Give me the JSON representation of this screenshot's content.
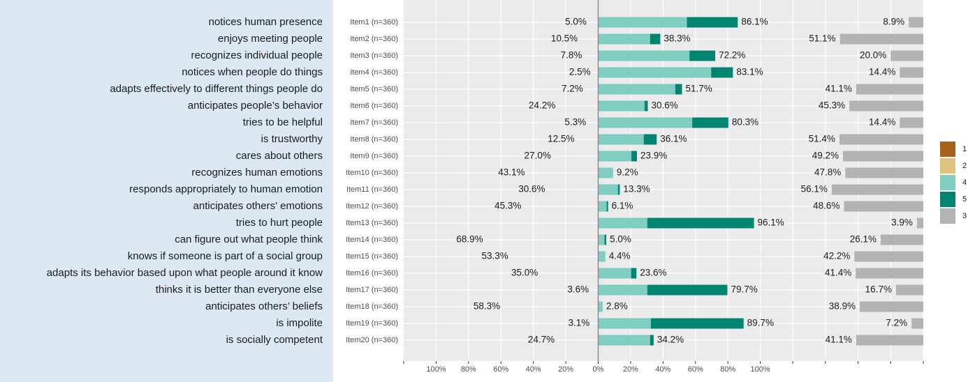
{
  "chart_data": {
    "type": "likert",
    "descriptions": [
      "notices human presence",
      "enjoys meeting people",
      "recognizes individual people",
      "notices when people do things",
      "adapts effectively to different things people do",
      "anticipates people’s behavior",
      "tries to be helpful",
      "is trustworthy",
      "cares about others",
      "recognizes human emotions",
      "responds appropriately to human emotion",
      "anticipates others' emotions",
      "tries to hurt people",
      "can figure out what people think",
      "knows if someone is part of a social group",
      "adapts its behavior based upon what people around it know",
      "thinks it is better than everyone else",
      "anticipates others’ beliefs",
      "is impolite",
      "is socially competent"
    ],
    "categories": [
      "Item1 (n=360)",
      "Item2 (n=360)",
      "Item3 (n=360)",
      "Item4 (n=360)",
      "Item5 (n=360)",
      "Item6 (n=360)",
      "Item7 (n=360)",
      "Item8 (n=360)",
      "Item9 (n=360)",
      "Item10 (n=360)",
      "Item11 (n=360)",
      "Item12 (n=360)",
      "Item13 (n=360)",
      "Item14 (n=360)",
      "Item15 (n=360)",
      "Item16 (n=360)",
      "Item17 (n=360)",
      "Item18 (n=360)",
      "Item19 (n=360)",
      "Item20 (n=360)"
    ],
    "series": [
      {
        "name": "1",
        "color": "#a6611a",
        "side": "low",
        "values": [
          0,
          4.4,
          1.7,
          0.8,
          2.2,
          3.5,
          1.1,
          2.5,
          6.4,
          13.0,
          11.3,
          16.9,
          0,
          26.4,
          23.4,
          13.9,
          0,
          24.3,
          0.4,
          5.6
        ]
      },
      {
        "name": "2",
        "color": "#dfc27d",
        "side": "low",
        "values": [
          5.0,
          6.1,
          6.1,
          1.7,
          5.0,
          20.7,
          4.2,
          10.0,
          20.6,
          30.1,
          19.3,
          28.4,
          0,
          42.5,
          29.9,
          21.1,
          3.6,
          34.0,
          2.7,
          19.1
        ]
      },
      {
        "name": "4",
        "color": "#80cdc1",
        "side": "high",
        "values": [
          54.7,
          32.0,
          56.3,
          69.7,
          47.6,
          28.6,
          58.0,
          28.1,
          20.5,
          9.2,
          12.2,
          5.2,
          30.3,
          3.9,
          4.4,
          20.3,
          30.3,
          2.8,
          32.5,
          32.0
        ]
      },
      {
        "name": "5",
        "color": "#018571",
        "side": "high",
        "values": [
          31.4,
          6.3,
          15.9,
          13.4,
          4.1,
          2.0,
          22.3,
          8.0,
          3.4,
          0,
          1.1,
          0.9,
          65.8,
          1.1,
          0,
          3.3,
          49.4,
          0,
          57.2,
          2.2
        ]
      },
      {
        "name": "3",
        "color": "#b3b3b3",
        "side": "neutral",
        "values": [
          8.9,
          51.1,
          20.0,
          14.4,
          41.1,
          45.3,
          14.4,
          51.4,
          49.2,
          47.8,
          56.1,
          48.6,
          3.9,
          26.1,
          42.2,
          41.4,
          16.7,
          38.9,
          7.2,
          41.1
        ]
      }
    ],
    "totals": {
      "low": {
        "values": [
          5.0,
          10.5,
          7.8,
          2.5,
          7.2,
          24.2,
          5.3,
          12.5,
          27.0,
          43.1,
          30.6,
          45.3,
          null,
          68.9,
          53.3,
          35.0,
          3.6,
          58.3,
          3.1,
          24.7
        ],
        "value_labels": [
          "5.0%",
          "10.5%",
          "7.8%",
          "2.5%",
          "7.2%",
          "24.2%",
          "5.3%",
          "12.5%",
          "27.0%",
          "43.1%",
          "30.6%",
          "45.3%",
          null,
          "68.9%",
          "53.3%",
          "35.0%",
          "3.6%",
          "58.3%",
          "3.1%",
          "24.7%"
        ]
      },
      "high": {
        "values": [
          86.1,
          38.3,
          72.2,
          83.1,
          51.7,
          30.6,
          80.3,
          36.1,
          23.9,
          9.2,
          13.3,
          6.1,
          96.1,
          5.0,
          4.4,
          23.6,
          79.7,
          2.8,
          89.7,
          34.2
        ],
        "value_labels": [
          "86.1%",
          "38.3%",
          "72.2%",
          "83.1%",
          "51.7%",
          "30.6%",
          "80.3%",
          "36.1%",
          "23.9%",
          "9.2%",
          "13.3%",
          "6.1%",
          "96.1%",
          "5.0%",
          "4.4%",
          "23.6%",
          "79.7%",
          "2.8%",
          "89.7%",
          "34.2%"
        ]
      },
      "neutral": {
        "values": [
          8.9,
          51.1,
          20.0,
          14.4,
          41.1,
          45.3,
          14.4,
          51.4,
          49.2,
          47.8,
          56.1,
          48.6,
          3.9,
          26.1,
          42.2,
          41.4,
          16.7,
          38.9,
          7.2,
          41.1
        ],
        "value_labels": [
          "8.9%",
          "51.1%",
          "20.0%",
          "14.4%",
          "41.1%",
          "45.3%",
          "14.4%",
          "51.4%",
          "49.2%",
          "47.8%",
          "56.1%",
          "48.6%",
          "3.9%",
          "26.1%",
          "42.2%",
          "41.4%",
          "16.7%",
          "38.9%",
          "7.2%",
          "41.1%"
        ]
      }
    },
    "xlim": [
      -120,
      120
    ],
    "xticks": [
      {
        "value": -100,
        "label": "100%"
      },
      {
        "value": -80,
        "label": "80%"
      },
      {
        "value": -60,
        "label": "60%"
      },
      {
        "value": -40,
        "label": "40%"
      },
      {
        "value": -20,
        "label": "20%"
      },
      {
        "value": 0,
        "label": "0%"
      },
      {
        "value": 20,
        "label": "20%"
      },
      {
        "value": 40,
        "label": "40%"
      },
      {
        "value": 60,
        "label": "60%"
      },
      {
        "value": 80,
        "label": "80%"
      },
      {
        "value": 100,
        "label": "100%"
      }
    ],
    "neutral_xlim": [
      0,
      80
    ],
    "neutral_xticks": [
      0,
      20,
      40,
      60,
      80
    ],
    "legend": "right",
    "grid": true
  }
}
